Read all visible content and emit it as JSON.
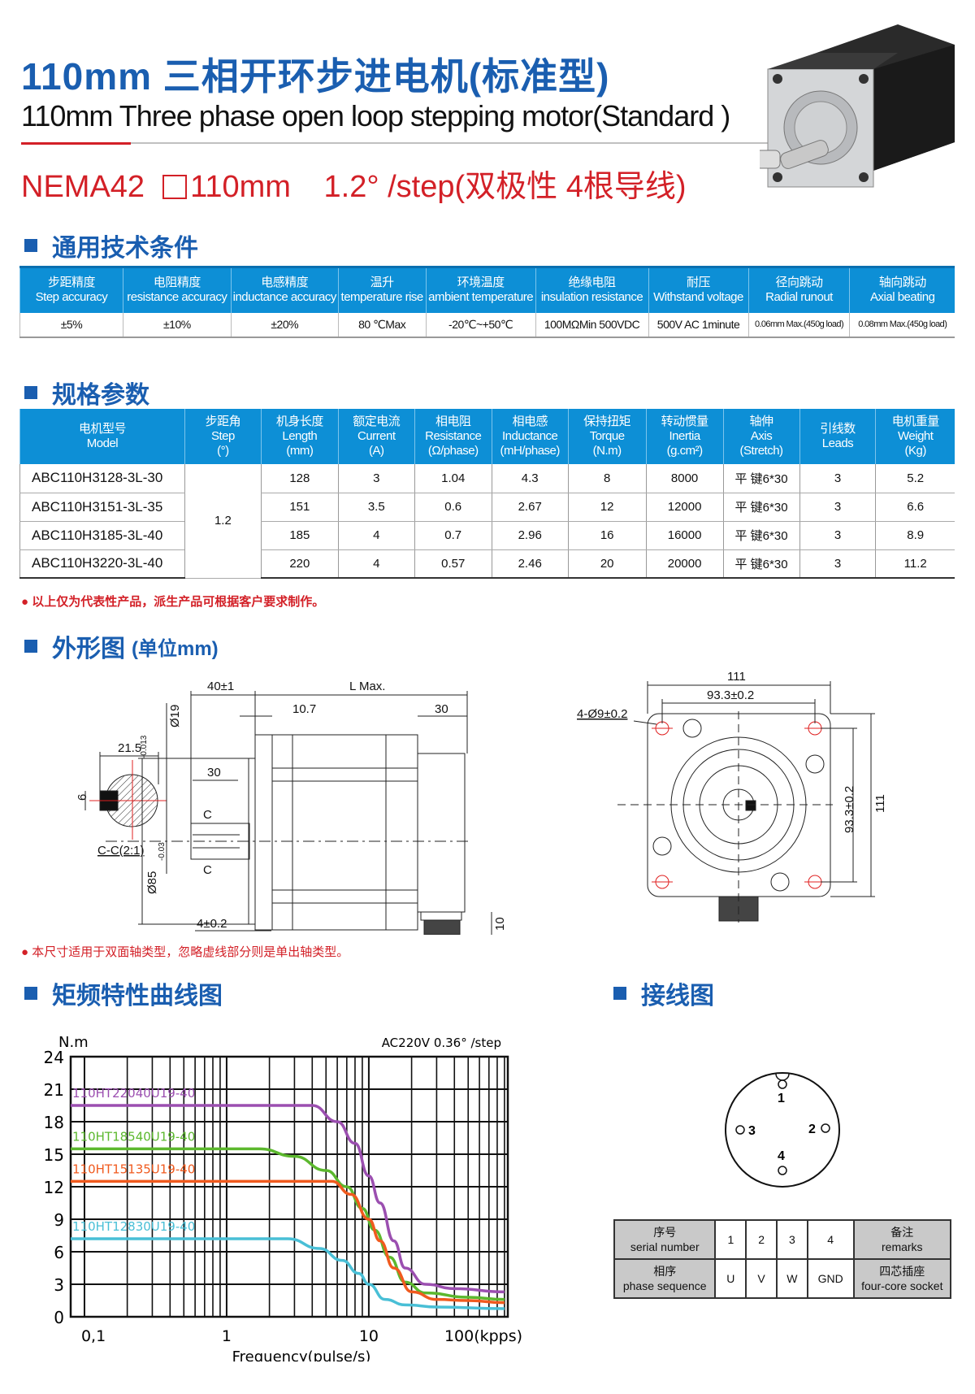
{
  "header": {
    "title_cn": "110mm 三相开环步进电机(标准型)",
    "title_en": "110mm Three phase open loop stepping motor(Standard )",
    "spec_line_nema": "NEMA42",
    "spec_line_size": "110mm",
    "spec_line_step": "1.2° /step(双极性 4根导线)"
  },
  "colors": {
    "brand_blue": "#1a5eb0",
    "table_header": "#0d8fd6",
    "accent_red": "#d32027"
  },
  "general": {
    "title": "通用技术条件",
    "columns": [
      {
        "cn": "步距精度",
        "en": "Step accuracy",
        "value": "±5%"
      },
      {
        "cn": "电阻精度",
        "en": "resistance accuracy",
        "value": "±10%"
      },
      {
        "cn": "电感精度",
        "en": "inductance accuracy",
        "value": "±20%"
      },
      {
        "cn": "温升",
        "en": "temperature rise",
        "value": "80 ℃Max"
      },
      {
        "cn": "环境温度",
        "en": "ambient temperature",
        "value": "-20℃~+50℃"
      },
      {
        "cn": "绝缘电阻",
        "en": "insulation resistance",
        "value": "100MΩMin 500VDC"
      },
      {
        "cn": "耐压",
        "en": "Withstand voltage",
        "value": "500V AC 1minute"
      },
      {
        "cn": "径向跳动",
        "en": "Radial runout",
        "value": "0.06mm Max.(450g load)"
      },
      {
        "cn": "轴向跳动",
        "en": "Axial beating",
        "value": "0.08mm Max.(450g load)"
      }
    ]
  },
  "specs": {
    "title": "规格参数",
    "headers": [
      [
        "电机型号",
        "Model",
        ""
      ],
      [
        "步距角",
        "Step",
        "(°)"
      ],
      [
        "机身长度",
        "Length",
        "(mm)"
      ],
      [
        "额定电流",
        "Current",
        "(A)"
      ],
      [
        "相电阻",
        "Resistance",
        "(Ω/phase)"
      ],
      [
        "相电感",
        "Inductance",
        "(mH/phase)"
      ],
      [
        "保持扭矩",
        "Torque",
        "(N.m)"
      ],
      [
        "转动惯量",
        "Inertia",
        "(g.cm²)"
      ],
      [
        "轴伸",
        "Axis",
        "(Stretch)"
      ],
      [
        "引线数",
        "Leads",
        ""
      ],
      [
        "电机重量",
        "Weight",
        "(Kg)"
      ]
    ],
    "step_angle": "1.2",
    "rows": [
      [
        "ABC110H3128-3L-30",
        "128",
        "3",
        "1.04",
        "4.3",
        "8",
        "8000",
        "平 键6*30",
        "3",
        "5.2"
      ],
      [
        "ABC110H3151-3L-35",
        "151",
        "3.5",
        "0.6",
        "2.67",
        "12",
        "12000",
        "平 键6*30",
        "3",
        "6.6"
      ],
      [
        "ABC110H3185-3L-40",
        "185",
        "4",
        "0.7",
        "2.96",
        "16",
        "16000",
        "平 键6*30",
        "3",
        "8.9"
      ],
      [
        "ABC110H3220-3L-40",
        "220",
        "4",
        "0.57",
        "2.46",
        "20",
        "20000",
        "平 键6*30",
        "3",
        "11.2"
      ]
    ],
    "note": "● 以上仅为代表性产品，派生产品可根据客户要求制作。"
  },
  "outline": {
    "title": "外形图",
    "unit": "(单位mm)",
    "labels": {
      "key_width": "21.5",
      "key_h": "6",
      "section": "C-C(2:1)",
      "shaft_len": "40±1",
      "l_max": "L Max.",
      "d1": "10.7",
      "d2": "30",
      "key_len": "30",
      "shaft_dia": "Ø19",
      "shaft_tol_up": "0",
      "shaft_tol_dn": "-0.013",
      "boss_dia": "Ø85",
      "boss_tol_up": "0",
      "boss_tol_dn": "-0.03",
      "c_mark": "C",
      "boss_h": "4±0.2",
      "conn_h": "10",
      "flange": "111",
      "hole_pitch": "93.3±0.2",
      "holes": "4-Ø9±0.2",
      "flange_v": "111",
      "hole_pitch_v": "93.3±0.2"
    },
    "note": "● 本尺寸适用于双面轴类型，忽略虚线部分则是单出轴类型。"
  },
  "torque": {
    "title": "矩频特性曲线图"
  },
  "chart_data": {
    "type": "line",
    "title": "AC220V 0.36°  /step",
    "ylabel": "N.m",
    "xlabel": "Frequency(pulse/s)",
    "x_scale": "log",
    "xlim": [
      0.08,
      95
    ],
    "ylim": [
      0,
      24
    ],
    "x_ticks": [
      {
        "v": 0.1,
        "label": "0,1"
      },
      {
        "v": 1,
        "label": "1"
      },
      {
        "v": 10,
        "label": "10"
      },
      {
        "v": 100,
        "label": "100(kpps)"
      }
    ],
    "y_ticks": [
      0,
      3,
      6,
      9,
      12,
      15,
      18,
      21,
      24
    ],
    "grid": true,
    "series": [
      {
        "name": "110HT22040U19-40",
        "color": "#9b4fb0",
        "points": [
          [
            0.08,
            19.5
          ],
          [
            4,
            19.5
          ],
          [
            6,
            18
          ],
          [
            8,
            16
          ],
          [
            10,
            13
          ],
          [
            12,
            10.5
          ],
          [
            15,
            7
          ],
          [
            18,
            4.5
          ],
          [
            25,
            3
          ],
          [
            40,
            2.6
          ],
          [
            90,
            2.3
          ]
        ]
      },
      {
        "name": "110HT18540U19-40",
        "color": "#5cb82e",
        "points": [
          [
            0.08,
            15.5
          ],
          [
            1.7,
            15.5
          ],
          [
            3,
            14.8
          ],
          [
            5,
            13.5
          ],
          [
            7,
            12
          ],
          [
            9,
            10
          ],
          [
            11,
            8
          ],
          [
            14,
            5.5
          ],
          [
            18,
            3.2
          ],
          [
            25,
            2.2
          ],
          [
            50,
            1.8
          ],
          [
            90,
            1.6
          ]
        ]
      },
      {
        "name": "110HT15135U19-40",
        "color": "#f05a1e",
        "points": [
          [
            0.08,
            12.5
          ],
          [
            5.5,
            12.5
          ],
          [
            7.5,
            11.3
          ],
          [
            10,
            9
          ],
          [
            12,
            7
          ],
          [
            15,
            4.5
          ],
          [
            20,
            2.3
          ],
          [
            30,
            1.6
          ],
          [
            50,
            1.5
          ],
          [
            90,
            1.3
          ]
        ]
      },
      {
        "name": "110HT12830U19-40",
        "color": "#49bfd6",
        "points": [
          [
            0.08,
            7.2
          ],
          [
            2.7,
            7.2
          ],
          [
            4.5,
            6.3
          ],
          [
            6.5,
            5.2
          ],
          [
            8.5,
            4
          ],
          [
            10,
            3
          ],
          [
            13,
            1.6
          ],
          [
            18,
            1.1
          ],
          [
            30,
            0.9
          ],
          [
            90,
            0.75
          ]
        ]
      }
    ]
  },
  "wiring": {
    "title": "接线图",
    "pins": [
      "1",
      "2",
      "3",
      "4"
    ],
    "table": {
      "row1": {
        "head_cn": "序号",
        "head_en": "serial number",
        "cells": [
          "1",
          "2",
          "3",
          "4"
        ],
        "tail_cn": "备注",
        "tail_en": "remarks"
      },
      "row2": {
        "head_cn": "相序",
        "head_en": "phase sequence",
        "cells": [
          "U",
          "V",
          "W",
          "GND"
        ],
        "tail_cn": "四芯插座",
        "tail_en": "four-core socket"
      }
    }
  }
}
